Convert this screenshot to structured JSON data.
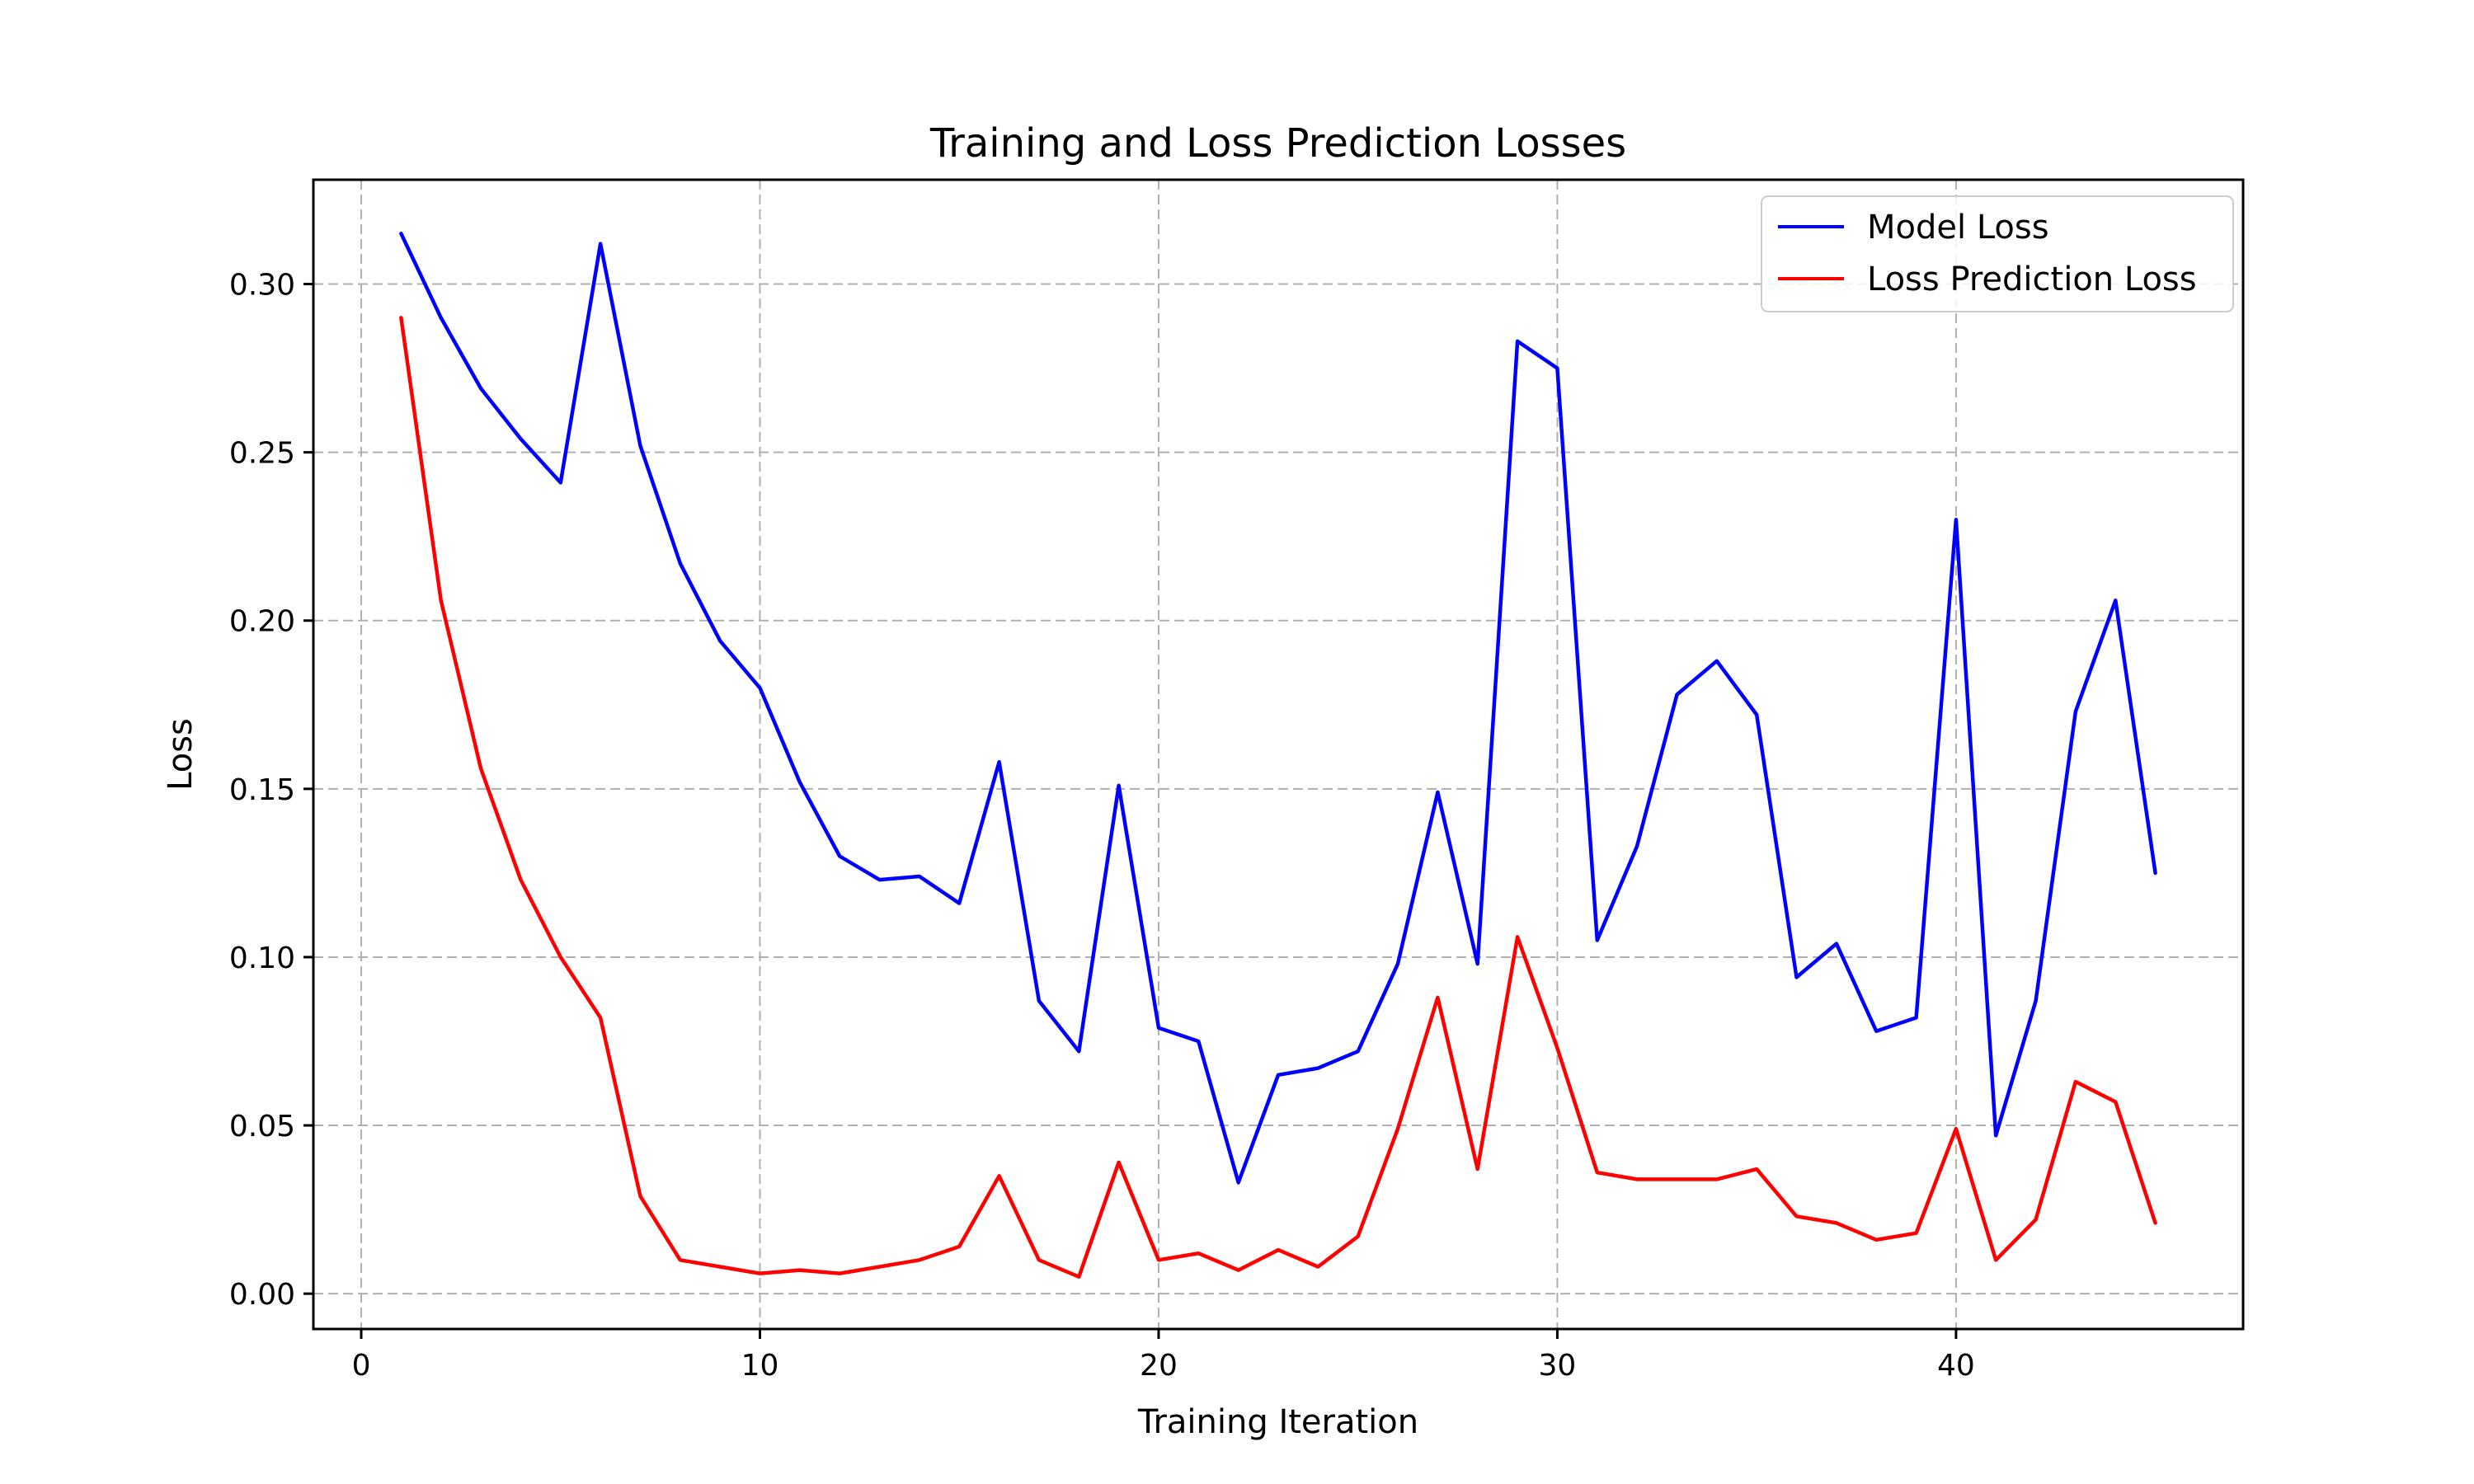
{
  "chart_data": {
    "type": "line",
    "title": "Training and Loss Prediction Losses",
    "xlabel": "Training Iteration",
    "ylabel": "Loss",
    "xlim": [
      -1.2,
      47.2
    ],
    "ylim": [
      -0.0105,
      0.331
    ],
    "xticks": [
      0,
      10,
      20,
      30,
      40
    ],
    "yticks": [
      0.0,
      0.05,
      0.1,
      0.15,
      0.2,
      0.25,
      0.3
    ],
    "xtick_labels": [
      "0",
      "10",
      "20",
      "30",
      "40"
    ],
    "ytick_labels": [
      "0.00",
      "0.05",
      "0.10",
      "0.15",
      "0.20",
      "0.25",
      "0.30"
    ],
    "grid": true,
    "legend_position": "top-right",
    "x": [
      1,
      2,
      3,
      4,
      5,
      6,
      7,
      8,
      9,
      10,
      11,
      12,
      13,
      14,
      15,
      16,
      17,
      18,
      19,
      20,
      21,
      22,
      23,
      24,
      25,
      26,
      27,
      28,
      29,
      30,
      31,
      32,
      33,
      34,
      35,
      36,
      37,
      38,
      39,
      40,
      41,
      42,
      43,
      44,
      45
    ],
    "series": [
      {
        "name": "Model Loss",
        "color": "#0000ff",
        "values": [
          0.315,
          0.29,
          0.269,
          0.254,
          0.241,
          0.312,
          0.252,
          0.217,
          0.194,
          0.18,
          0.152,
          0.13,
          0.123,
          0.124,
          0.116,
          0.158,
          0.087,
          0.072,
          0.151,
          0.079,
          0.075,
          0.033,
          0.065,
          0.067,
          0.072,
          0.098,
          0.149,
          0.098,
          0.283,
          0.275,
          0.105,
          0.133,
          0.178,
          0.188,
          0.172,
          0.094,
          0.104,
          0.078,
          0.082,
          0.23,
          0.047,
          0.087,
          0.173,
          0.206,
          0.125
        ]
      },
      {
        "name": "Loss Prediction Loss",
        "color": "#ff0000",
        "values": [
          0.29,
          0.206,
          0.156,
          0.123,
          0.1,
          0.082,
          0.029,
          0.01,
          0.008,
          0.006,
          0.007,
          0.006,
          0.008,
          0.01,
          0.014,
          0.035,
          0.01,
          0.005,
          0.039,
          0.01,
          0.012,
          0.007,
          0.013,
          0.008,
          0.017,
          0.049,
          0.088,
          0.037,
          0.106,
          0.073,
          0.036,
          0.034,
          0.034,
          0.034,
          0.037,
          0.023,
          0.021,
          0.016,
          0.018,
          0.049,
          0.01,
          0.022,
          0.063,
          0.057,
          0.021
        ]
      }
    ]
  }
}
